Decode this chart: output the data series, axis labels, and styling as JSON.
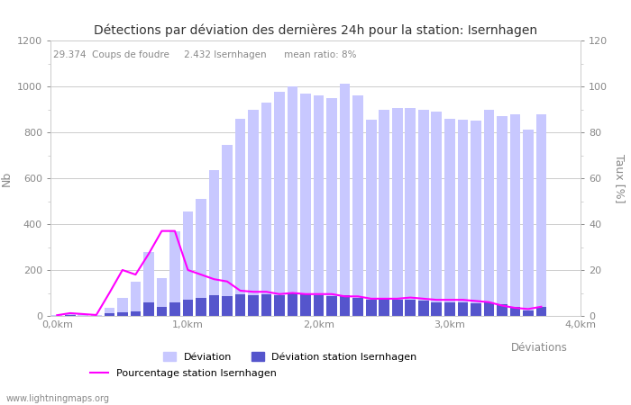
{
  "title": "Détections par déviation des dernières 24h pour la station: Isernhagen",
  "subtitle": "29.374  Coups de foudre     2.432 Isernhagen      mean ratio: 8%",
  "xlabel": "Déviations",
  "ylabel_left": "Nb",
  "ylabel_right": "Taux [%]",
  "footer": "www.lightningmaps.org",
  "ylim_left": [
    0,
    1200
  ],
  "ylim_right": [
    0,
    120
  ],
  "xtick_labels": [
    "0,0km",
    "1,0km",
    "2,0km",
    "3,0km",
    "4,0km"
  ],
  "xtick_positions": [
    0,
    10,
    20,
    30,
    40
  ],
  "deviation_bars": [
    5,
    10,
    8,
    2,
    35,
    80,
    150,
    280,
    165,
    370,
    455,
    510,
    635,
    745,
    860,
    900,
    930,
    975,
    1000,
    970,
    960,
    950,
    1010,
    960,
    855,
    900,
    905,
    905,
    900,
    890,
    860,
    855,
    850,
    900,
    870,
    880,
    810,
    880
  ],
  "station_bars": [
    1,
    2,
    1,
    1,
    10,
    15,
    20,
    60,
    40,
    60,
    70,
    80,
    90,
    85,
    95,
    90,
    95,
    90,
    100,
    95,
    90,
    85,
    90,
    80,
    70,
    75,
    70,
    70,
    65,
    60,
    60,
    60,
    55,
    60,
    50,
    40,
    25,
    40
  ],
  "percentage_line": [
    0.3,
    1.2,
    0.8,
    0.4,
    10,
    20,
    18,
    27,
    37,
    37,
    20,
    18,
    16,
    15,
    11,
    10.5,
    10.5,
    9.5,
    10,
    9.5,
    9.5,
    9.5,
    8.5,
    8.5,
    7.5,
    7.5,
    7.5,
    8,
    7.5,
    7,
    7,
    7,
    6.5,
    6.0,
    4.5,
    3.5,
    3.0,
    4.0
  ],
  "bg_color": "#ffffff",
  "bar_light_color": "#c8c8ff",
  "bar_dark_color": "#5555cc",
  "line_color": "#ff00ff",
  "grid_color": "#cccccc",
  "text_color": "#888888",
  "title_color": "#333333",
  "n_bars": 38,
  "legend1_labels": [
    "Déviation",
    "Déviation station Isernhagen"
  ],
  "legend2_label": "Pourcentage station Isernhagen"
}
